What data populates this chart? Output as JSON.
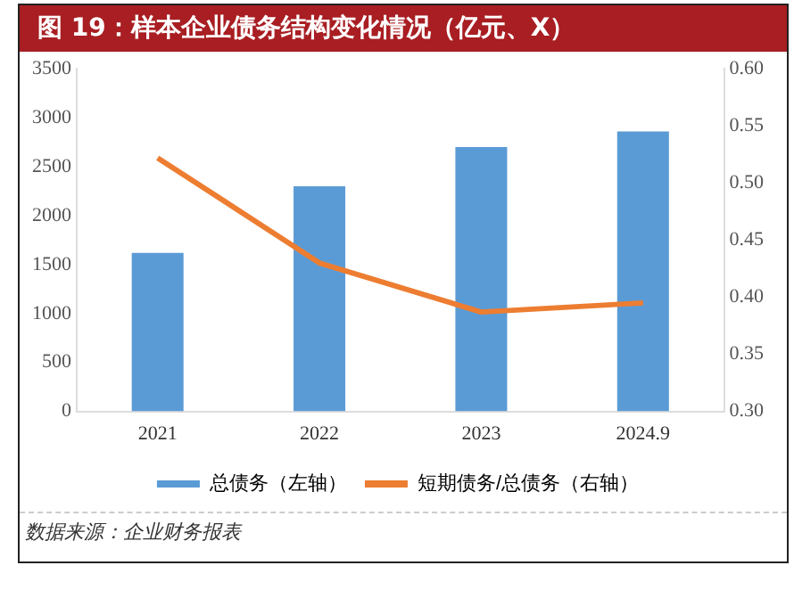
{
  "chart_data": {
    "type": "bar",
    "title": "图 19：样本企业债务结构变化情况（亿元、X）",
    "categories": [
      "2021",
      "2022",
      "2023",
      "2024.9"
    ],
    "series": [
      {
        "name": "总债务（左轴）",
        "color": "#5b9bd5",
        "values": [
          1620,
          2300,
          2700,
          2860
        ]
      },
      {
        "name": "短期债务/总债务（右轴）",
        "type": "line",
        "axis": "y2",
        "color": "#ed7d31",
        "values": [
          0.522,
          0.43,
          0.387,
          0.395
        ]
      }
    ],
    "ylim": [
      0,
      3500
    ],
    "yticks": [
      0,
      500,
      1000,
      1500,
      2000,
      2500,
      3000,
      3500
    ],
    "y2lim": [
      0.3,
      0.6
    ],
    "y2ticks": [
      {
        "value": 0.3,
        "label": "0.30"
      },
      {
        "value": 0.35,
        "label": "0.35"
      },
      {
        "value": 0.4,
        "label": "0.40"
      },
      {
        "value": 0.45,
        "label": "0.45"
      },
      {
        "value": 0.5,
        "label": "0.50"
      },
      {
        "value": 0.55,
        "label": "0.55"
      },
      {
        "value": 0.6,
        "label": "0.60"
      }
    ],
    "grid": false,
    "legend": "bottom",
    "marker": "none",
    "annotations": [
      "数据来源：企业财务报表"
    ]
  }
}
